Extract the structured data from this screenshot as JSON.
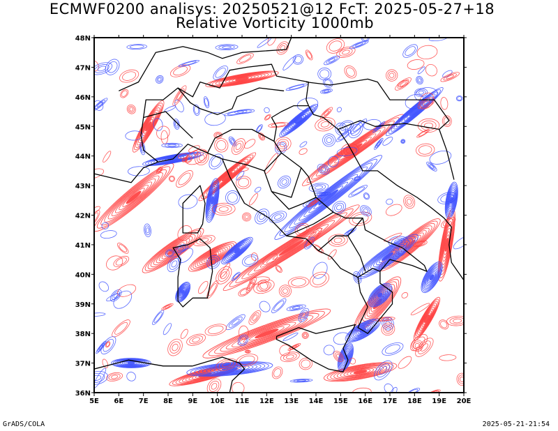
{
  "title": {
    "line1": "ECMWF0200 analisys: 20250521@12 FcT: 2025-05-27+18",
    "line2": "Relative Vorticity 1000mb"
  },
  "axes": {
    "x_ticks": [
      "5E",
      "6E",
      "7E",
      "8E",
      "9E",
      "10E",
      "11E",
      "12E",
      "13E",
      "14E",
      "15E",
      "16E",
      "17E",
      "18E",
      "19E",
      "20E"
    ],
    "y_ticks": [
      "36N",
      "37N",
      "38N",
      "39N",
      "40N",
      "41N",
      "42N",
      "43N",
      "44N",
      "45N",
      "46N",
      "47N",
      "48N"
    ],
    "lon_range": [
      5,
      20
    ],
    "lat_range": [
      36,
      48
    ]
  },
  "colors": {
    "positive_contours": "#ff3b3b",
    "negative_contours": "#3a4dff",
    "coastline": "#000000"
  },
  "footer": {
    "credit": "GrADS/COLA",
    "timestamp": "2025-05-21-21:54"
  }
}
